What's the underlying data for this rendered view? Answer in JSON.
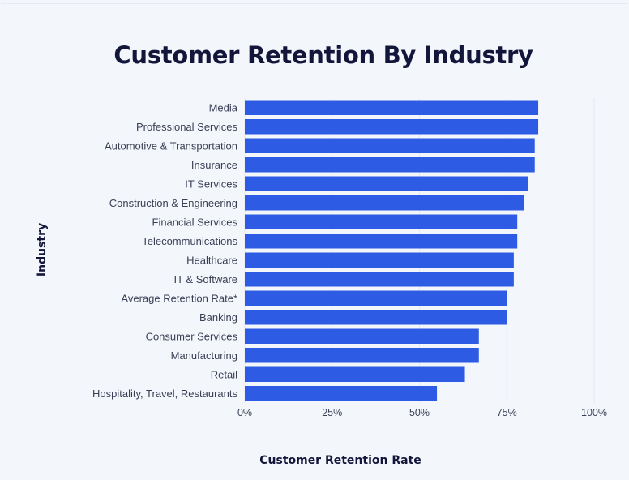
{
  "chart_data": {
    "type": "bar",
    "orientation": "horizontal",
    "title": "Customer Retention By Industry",
    "xlabel": "Customer Retention Rate",
    "ylabel": "Industry",
    "xlim": [
      0,
      100
    ],
    "xticks": [
      "0%",
      "25%",
      "50%",
      "75%",
      "100%"
    ],
    "categories": [
      "Media",
      "Professional Services",
      "Automotive & Transportation",
      "Insurance",
      "IT Services",
      "Construction & Engineering",
      "Financial Services",
      "Telecommunications",
      "Healthcare",
      "IT & Software",
      "Average Retention Rate*",
      "Banking",
      "Consumer Services",
      "Manufacturing",
      "Retail",
      "Hospitality, Travel, Restaurants"
    ],
    "values": [
      84,
      84,
      83,
      83,
      81,
      80,
      78,
      78,
      77,
      77,
      75,
      75,
      67,
      67,
      63,
      55
    ],
    "bar_color": "#2d5be3",
    "grid": true
  }
}
